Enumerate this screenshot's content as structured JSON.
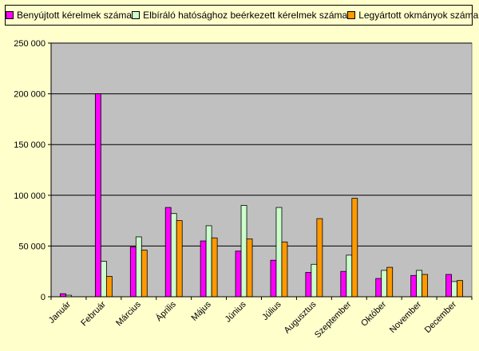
{
  "chart_data": {
    "type": "bar",
    "title": "",
    "xlabel": "",
    "ylabel": "",
    "ylim": [
      0,
      250000
    ],
    "yticks": [
      0,
      50000,
      100000,
      150000,
      200000,
      250000
    ],
    "ytick_labels": [
      "0",
      "50 000",
      "100 000",
      "150 000",
      "200 000",
      "250 000"
    ],
    "grid": "horizontal",
    "legend_position": "top",
    "categories": [
      "Január",
      "Február",
      "Március",
      "Április",
      "Május",
      "Június",
      "Július",
      "Augusztus",
      "Szeptember",
      "Október",
      "November",
      "December"
    ],
    "series": [
      {
        "name": "Benyújtott kérelmek száma",
        "color": "#ff00ff",
        "values": [
          3000,
          200000,
          49000,
          88000,
          55000,
          45000,
          36000,
          24000,
          25000,
          18000,
          21000,
          22000
        ]
      },
      {
        "name": "Elbíráló hatósághoz beérkezett kérelmek száma",
        "color": "#ccffcc",
        "values": [
          1500,
          35000,
          59000,
          82000,
          70000,
          90000,
          88000,
          32000,
          41000,
          26000,
          26000,
          15000
        ]
      },
      {
        "name": "Legyártott okmányok száma",
        "color": "#ff9900",
        "values": [
          0,
          20000,
          46000,
          75000,
          58000,
          57000,
          54000,
          77000,
          97000,
          29000,
          22000,
          16000
        ]
      }
    ],
    "plot_background": "#c0c0c0",
    "page_background": "#ffffcc"
  }
}
